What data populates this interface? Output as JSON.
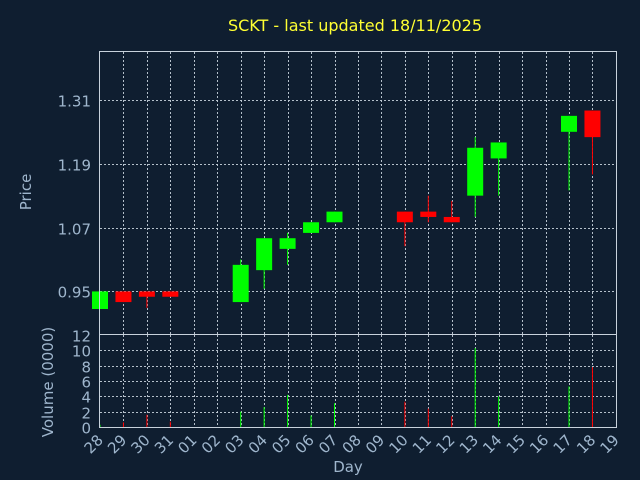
{
  "chart_data": {
    "type": "candlestick",
    "title": "SCKT - last updated 18/11/2025",
    "xlabel": "Day",
    "price_ylabel": "Price",
    "volume_ylabel": "Volume (0000)",
    "price_ylim": [
      0.87,
      1.4
    ],
    "price_ticks": [
      "0.95",
      "1.07",
      "1.19",
      "1.31"
    ],
    "volume_ylim": [
      0,
      12
    ],
    "volume_ticks": [
      "0",
      "2",
      "4",
      "6",
      "8",
      "10",
      "12"
    ],
    "x_tick_labels": [
      "28",
      "29",
      "30",
      "31",
      "01",
      "02",
      "03",
      "04",
      "05",
      "06",
      "07",
      "08",
      "09",
      "10",
      "11",
      "12",
      "13",
      "14",
      "15",
      "16",
      "17",
      "18",
      "19"
    ],
    "colors": {
      "up": "#00ff00",
      "down": "#ff0000"
    },
    "candles": [
      {
        "day": "28",
        "open": 0.917,
        "high": 0.95,
        "low": 0.917,
        "close": 0.95,
        "volume": 0.3
      },
      {
        "day": "29",
        "open": 0.95,
        "high": 0.95,
        "low": 0.93,
        "close": 0.93,
        "volume": 0.6
      },
      {
        "day": "30",
        "open": 0.95,
        "high": 0.95,
        "low": 0.919,
        "close": 0.94,
        "volume": 1.6
      },
      {
        "day": "31",
        "open": 0.95,
        "high": 0.95,
        "low": 0.94,
        "close": 0.94,
        "volume": 0.7
      },
      {
        "day": "03",
        "open": 0.93,
        "high": 1.01,
        "low": 0.93,
        "close": 1.0,
        "volume": 2.0
      },
      {
        "day": "04",
        "open": 0.99,
        "high": 1.05,
        "low": 0.955,
        "close": 1.05,
        "volume": 2.6
      },
      {
        "day": "05",
        "open": 1.03,
        "high": 1.06,
        "low": 1.0,
        "close": 1.05,
        "volume": 4.2
      },
      {
        "day": "06",
        "open": 1.06,
        "high": 1.08,
        "low": 1.06,
        "close": 1.08,
        "volume": 1.5
      },
      {
        "day": "07",
        "open": 1.08,
        "high": 1.1,
        "low": 1.08,
        "close": 1.1,
        "volume": 3.1
      },
      {
        "day": "10",
        "open": 1.1,
        "high": 1.1,
        "low": 1.035,
        "close": 1.08,
        "volume": 3.3
      },
      {
        "day": "11",
        "open": 1.1,
        "high": 1.13,
        "low": 1.08,
        "close": 1.09,
        "volume": 2.4
      },
      {
        "day": "12",
        "open": 1.09,
        "high": 1.12,
        "low": 1.08,
        "close": 1.08,
        "volume": 1.4
      },
      {
        "day": "13",
        "open": 1.13,
        "high": 1.24,
        "low": 1.09,
        "close": 1.22,
        "volume": 10.3
      },
      {
        "day": "14",
        "open": 1.2,
        "high": 1.23,
        "low": 1.13,
        "close": 1.23,
        "volume": 4.0
      },
      {
        "day": "17",
        "open": 1.25,
        "high": 1.28,
        "low": 1.14,
        "close": 1.28,
        "volume": 5.3
      },
      {
        "day": "18",
        "open": 1.29,
        "high": 1.29,
        "low": 1.17,
        "close": 1.24,
        "volume": 7.8
      }
    ]
  }
}
